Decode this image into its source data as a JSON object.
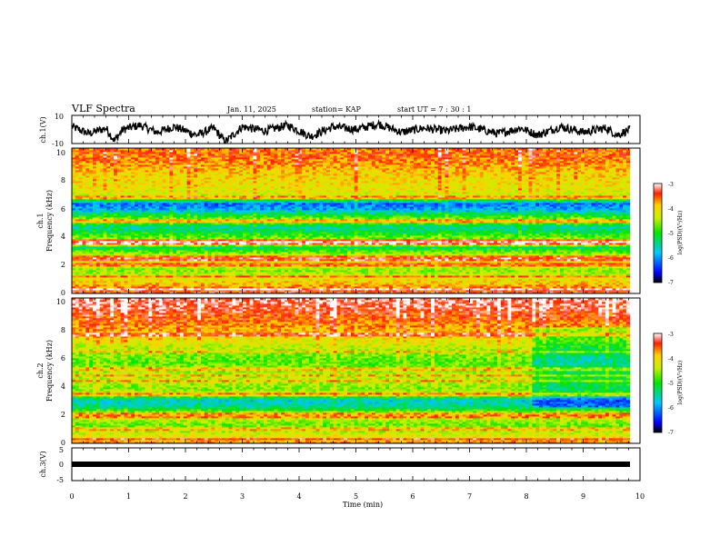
{
  "header": {
    "title": "VLF Spectra",
    "date": "Jan. 11, 2025",
    "station": "station= KAP",
    "start": "start UT =  7 : 30 : 1"
  },
  "chart_data": [
    {
      "type": "line",
      "name": "ch1-waveform",
      "ylabel": "ch.1(V)",
      "ylim": [
        -10,
        10
      ],
      "yticks": [
        "10",
        "-10"
      ],
      "xlim": [
        0,
        10
      ],
      "x_data_max": 9.82,
      "description_points": [
        [
          0.0,
          2
        ],
        [
          0.3,
          -3
        ],
        [
          0.6,
          1
        ],
        [
          0.75,
          -8
        ],
        [
          0.9,
          0
        ],
        [
          1.2,
          3
        ],
        [
          1.5,
          -2
        ],
        [
          1.8,
          2
        ],
        [
          2.2,
          -4
        ],
        [
          2.5,
          1
        ],
        [
          2.7,
          -9
        ],
        [
          3.0,
          2
        ],
        [
          3.4,
          -1
        ],
        [
          3.8,
          3
        ],
        [
          4.2,
          -5
        ],
        [
          4.6,
          2
        ],
        [
          5.0,
          0
        ],
        [
          5.4,
          4
        ],
        [
          5.8,
          -2
        ],
        [
          6.2,
          1
        ],
        [
          6.6,
          -1
        ],
        [
          7.0,
          2
        ],
        [
          7.5,
          -3
        ],
        [
          7.9,
          1
        ],
        [
          8.2,
          -4
        ],
        [
          8.6,
          2
        ],
        [
          9.0,
          -2
        ],
        [
          9.4,
          1
        ],
        [
          9.6,
          -4
        ],
        [
          9.82,
          0
        ]
      ]
    },
    {
      "type": "heatmap",
      "name": "ch1-spectrogram",
      "ylabel_line1": "ch.1",
      "ylabel_line2": "Frequency (kHz)",
      "ylim": [
        0,
        10
      ],
      "yticks": [
        "0",
        "2",
        "4",
        "6",
        "8",
        "10"
      ],
      "xlim": [
        0,
        10
      ],
      "x_data_max": 9.82,
      "colorbar": {
        "label": "log(PSD)(V²/Hz)",
        "range": [
          -7,
          -3
        ],
        "ticks": [
          "-3",
          "-4",
          "-5",
          "-6",
          "-7"
        ]
      },
      "freq_profile_kHz": [
        [
          0.0,
          -3.3
        ],
        [
          0.3,
          -3.6
        ],
        [
          0.8,
          -4.0
        ],
        [
          1.2,
          -4.3
        ],
        [
          1.6,
          -4.6
        ],
        [
          2.0,
          -4.2
        ],
        [
          2.4,
          -3.9
        ],
        [
          2.8,
          -4.6
        ],
        [
          3.2,
          -5.3
        ],
        [
          3.5,
          -3.4
        ],
        [
          3.8,
          -4.6
        ],
        [
          4.2,
          -5.1
        ],
        [
          4.6,
          -5.5
        ],
        [
          5.0,
          -4.4
        ],
        [
          5.3,
          -4.9
        ],
        [
          5.8,
          -5.9
        ],
        [
          6.2,
          -6.2
        ],
        [
          6.6,
          -4.4
        ],
        [
          7.0,
          -4.2
        ],
        [
          7.6,
          -4.1
        ],
        [
          8.2,
          -4.0
        ],
        [
          8.8,
          -3.8
        ],
        [
          9.4,
          -3.6
        ],
        [
          10.0,
          -3.6
        ]
      ],
      "bright_lines_kHz": [
        0.3,
        1.2,
        2.0,
        2.3,
        2.5,
        3.5,
        3.7,
        5.0,
        6.6
      ]
    },
    {
      "type": "heatmap",
      "name": "ch2-spectrogram",
      "ylabel_line1": "ch.2",
      "ylabel_line2": "Frequency (kHz)",
      "ylim": [
        0,
        10
      ],
      "yticks": [
        "0",
        "2",
        "4",
        "6",
        "8",
        "10"
      ],
      "xlim": [
        0,
        10
      ],
      "x_data_max": 9.82,
      "colorbar": {
        "label": "log(PSD)(V²/Hz)",
        "range": [
          -7,
          -3
        ],
        "ticks": [
          "-3",
          "-4",
          "-5",
          "-6",
          "-7"
        ]
      },
      "freq_profile_kHz": [
        [
          0.0,
          -3.6
        ],
        [
          0.3,
          -4.0
        ],
        [
          0.8,
          -4.4
        ],
        [
          1.3,
          -4.7
        ],
        [
          1.8,
          -4.3
        ],
        [
          2.1,
          -4.4
        ],
        [
          2.5,
          -5.4
        ],
        [
          3.0,
          -5.7
        ],
        [
          3.4,
          -4.3
        ],
        [
          3.8,
          -4.6
        ],
        [
          4.4,
          -4.4
        ],
        [
          5.0,
          -4.5
        ],
        [
          5.6,
          -4.8
        ],
        [
          6.2,
          -4.6
        ],
        [
          7.0,
          -4.2
        ],
        [
          7.6,
          -3.9
        ],
        [
          8.2,
          -3.7
        ],
        [
          8.8,
          -3.5
        ],
        [
          9.4,
          -3.3
        ],
        [
          10.0,
          -3.2
        ]
      ],
      "late_quiet_from_min": 8.1,
      "bright_lines_kHz": [
        0.3,
        1.0,
        1.8,
        2.0,
        3.4,
        4.3,
        4.7,
        5.1,
        6.3,
        7.5
      ]
    },
    {
      "type": "line",
      "name": "ch3-waveform",
      "ylabel": "ch.3(V)",
      "ylim": [
        -5,
        5
      ],
      "yticks": [
        "5",
        "0",
        "-5"
      ],
      "xlim": [
        0,
        10
      ],
      "x_data_max": 9.82,
      "constant_value": 0
    }
  ],
  "xaxis": {
    "label": "Time (min)",
    "ticks": [
      "0",
      "1",
      "2",
      "3",
      "4",
      "5",
      "6",
      "7",
      "8",
      "9",
      "10"
    ]
  }
}
